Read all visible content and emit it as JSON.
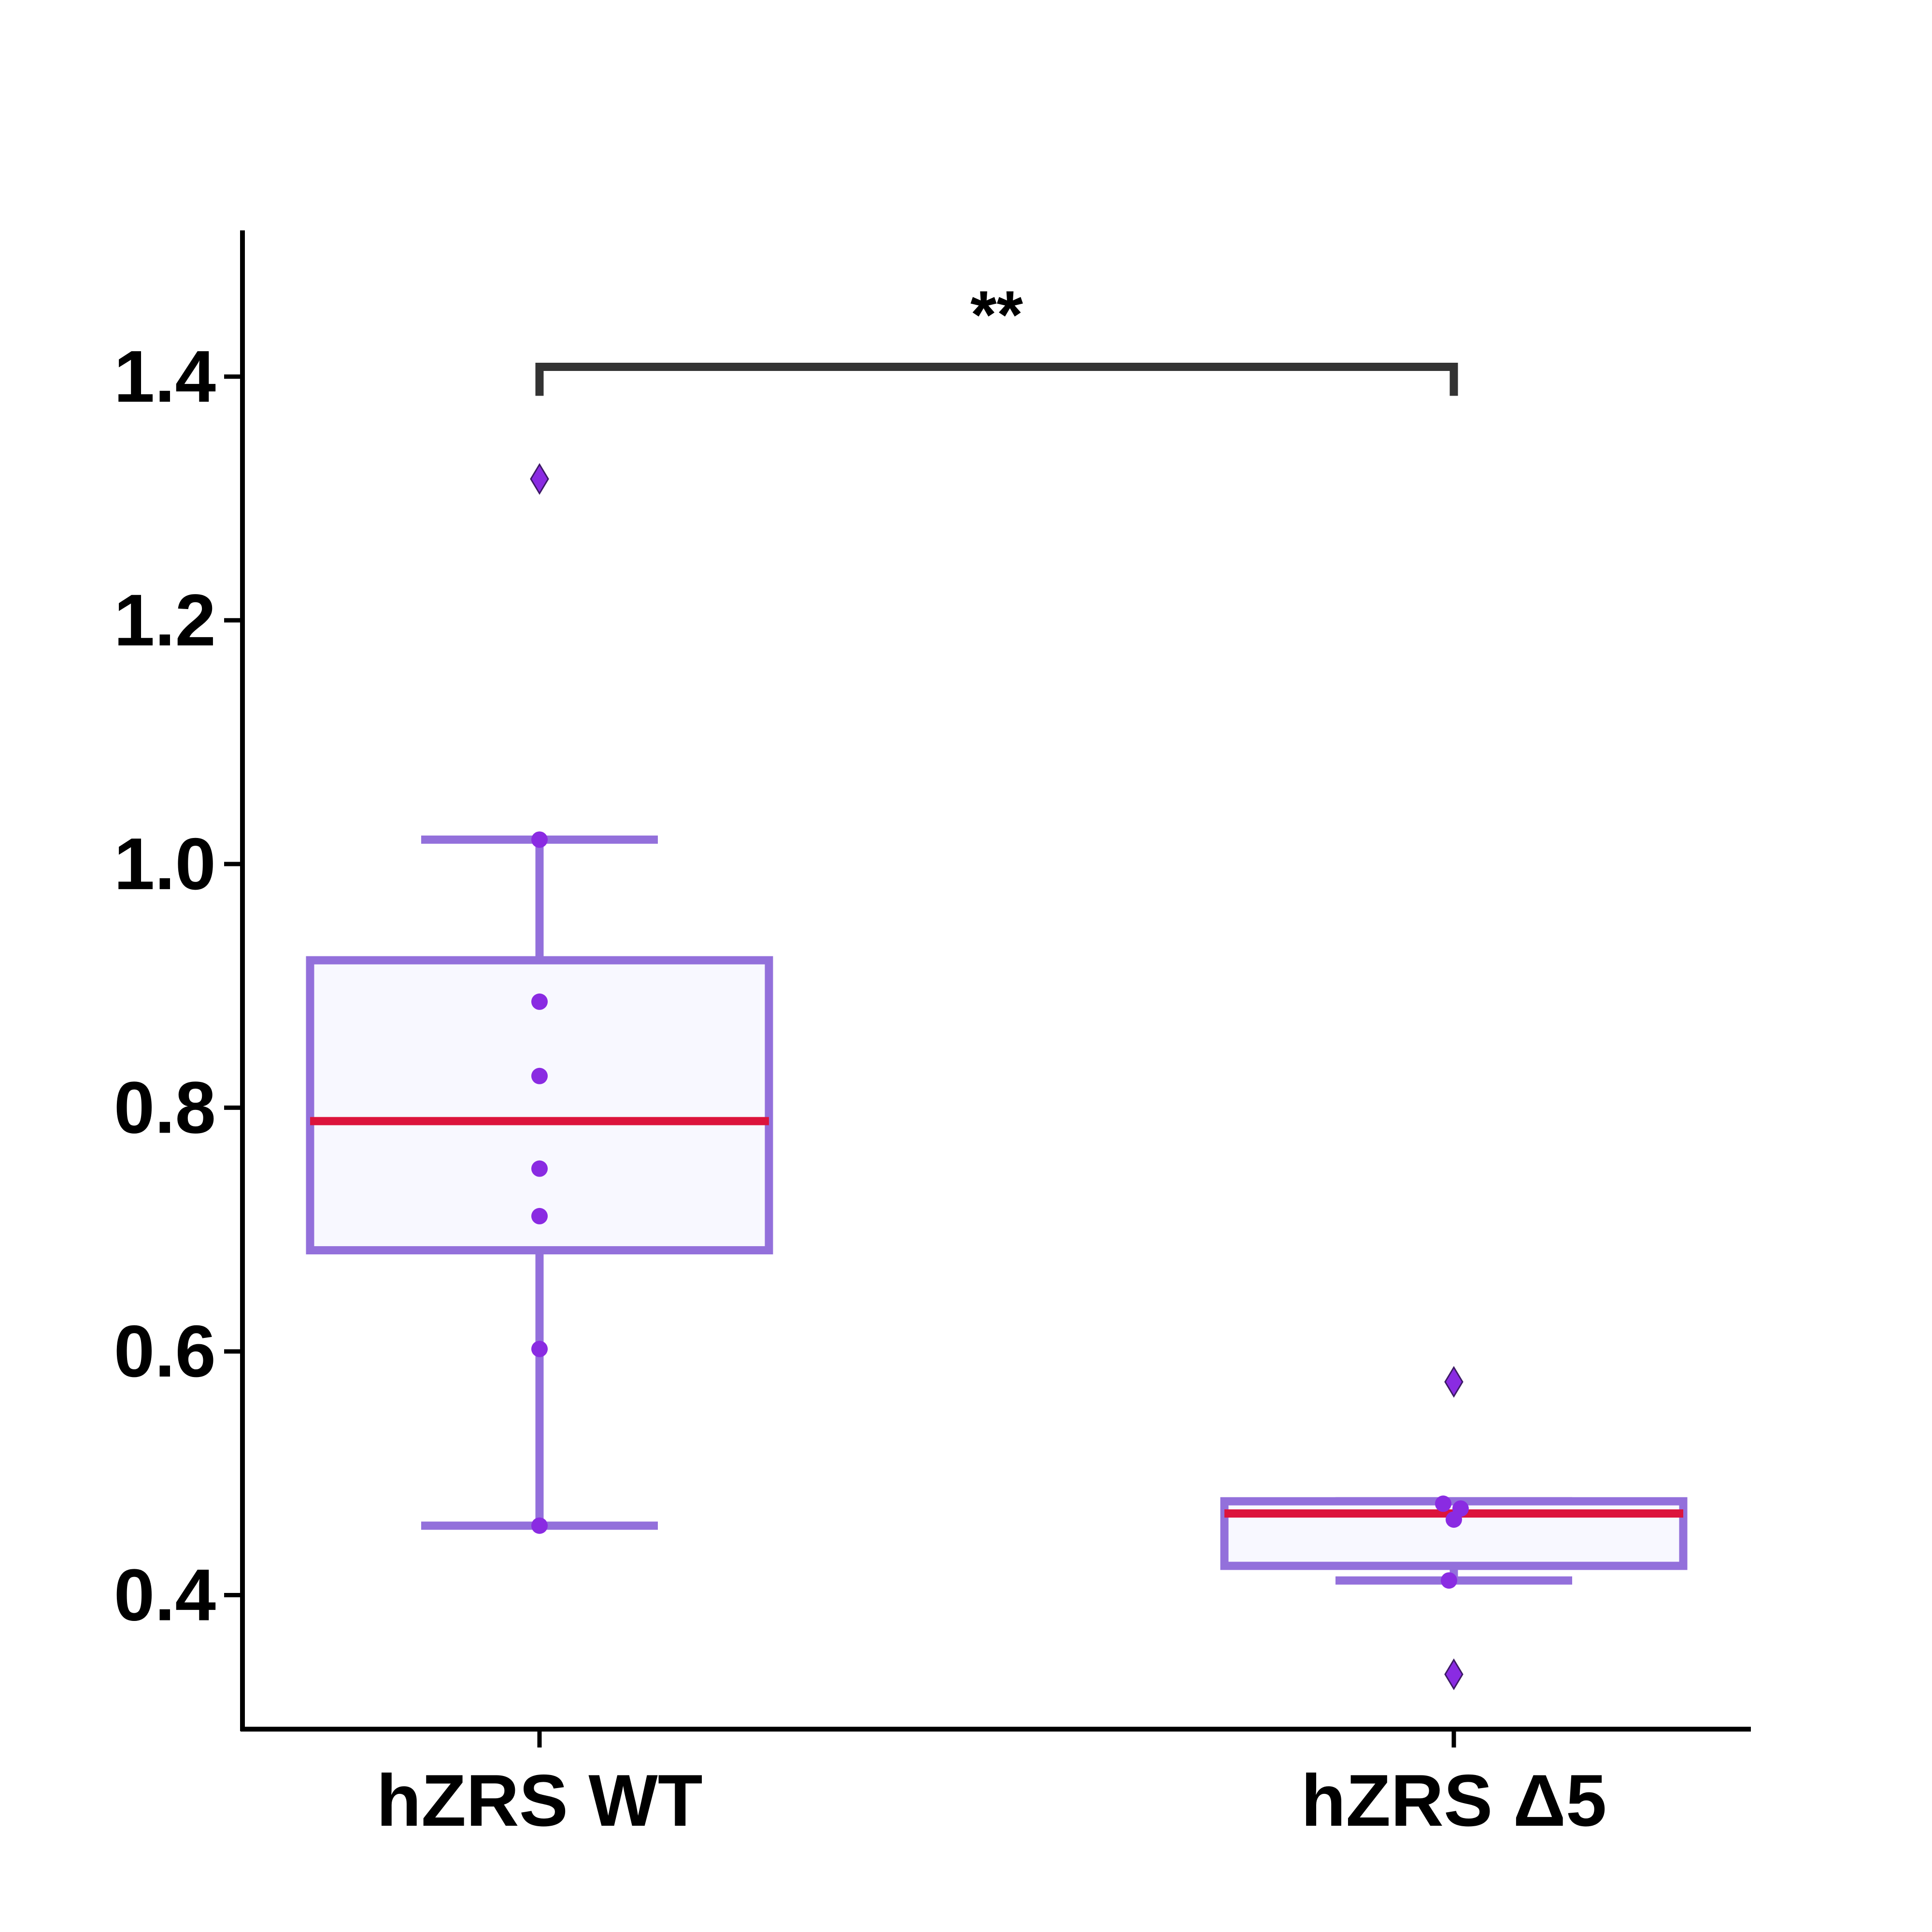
{
  "chart_data": {
    "type": "box",
    "categories": [
      "hZRS WT",
      "hZRS Δ5"
    ],
    "ylim": [
      0.29,
      1.52
    ],
    "yticks": [
      0.4,
      0.6,
      0.8,
      1.0,
      1.2,
      1.4
    ],
    "ytick_labels": [
      "0.4",
      "0.6",
      "0.8",
      "1.0",
      "1.2",
      "1.4"
    ],
    "grid": false,
    "colors": {
      "box_edge": "#9370DB",
      "box_fill": "#F8F8FF",
      "median": "#DC143C",
      "point": "#8A2BE2",
      "bracket": "#333333",
      "axis": "#000000"
    },
    "boxes": [
      {
        "name": "hZRS WT",
        "q1": 0.683,
        "median": 0.789,
        "q3": 0.921,
        "whisker_low": 0.457,
        "whisker_high": 1.02,
        "outliers": [
          1.316
        ],
        "points": [
          1.02,
          0.887,
          0.826,
          0.75,
          0.711,
          0.602,
          0.457
        ]
      },
      {
        "name": "hZRS Δ5",
        "q1": 0.424,
        "median": 0.467,
        "q3": 0.477,
        "whisker_low": 0.412,
        "whisker_high": 0.477,
        "outliers": [
          0.575,
          0.335
        ],
        "points": [
          0.475,
          0.471,
          0.462,
          0.412
        ]
      }
    ],
    "significance": {
      "from": 0,
      "to": 1,
      "y": 1.408,
      "label": "**"
    }
  }
}
